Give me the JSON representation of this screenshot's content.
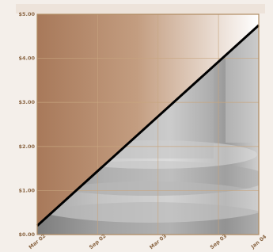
{
  "chart_data": {
    "type": "line",
    "x": [
      "Mar 02",
      "Jan 04"
    ],
    "series": [
      {
        "color": "#000000",
        "values": [
          0.2,
          4.75
        ]
      }
    ],
    "xlim": [
      "Mar 02",
      "Jan 04"
    ],
    "xticks": [
      "Mar 02",
      "Sep 02",
      "Mar 03",
      "Sep 03",
      "Jan 04"
    ],
    "ylim": [
      0,
      5
    ],
    "yticks": [
      {
        "value": 0,
        "label": "$0.00"
      },
      {
        "value": 1,
        "label": "$1.00"
      },
      {
        "value": 2,
        "label": "$2.00"
      },
      {
        "value": 3,
        "label": "$3.00"
      },
      {
        "value": 4,
        "label": "$4.00"
      },
      {
        "value": 5,
        "label": "$5.00"
      }
    ],
    "grid": true
  }
}
